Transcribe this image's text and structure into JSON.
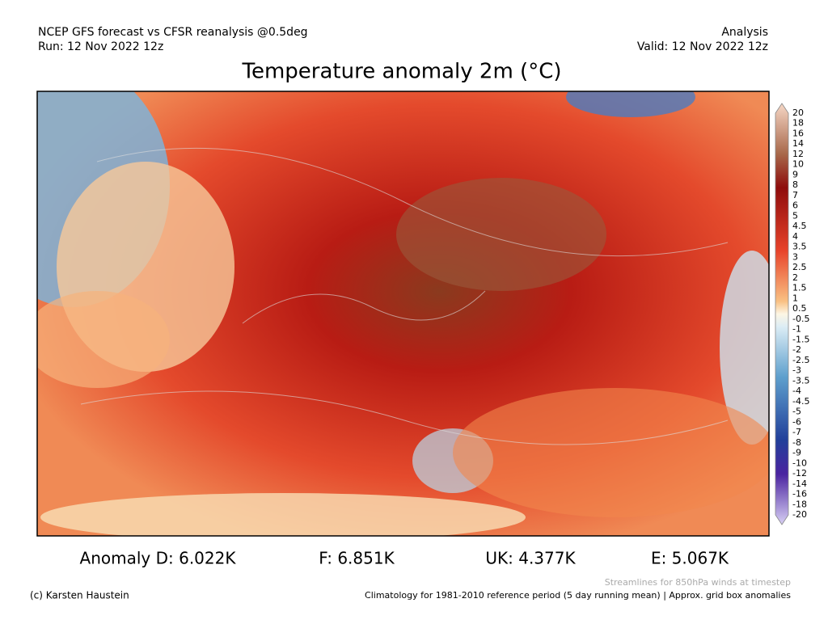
{
  "header": {
    "left_line1": "NCEP GFS forecast vs CFSR reanalysis @0.5deg",
    "left_line2": "Run: 12 Nov 2022 12z",
    "right_line1": "Analysis",
    "right_line2": "Valid: 12 Nov 2022 12z"
  },
  "title": "Temperature anomaly 2m (°C)",
  "colorbar": {
    "labels": [
      "20",
      "18",
      "16",
      "14",
      "12",
      "10",
      "9",
      "8",
      "7",
      "6",
      "5",
      "4.5",
      "4",
      "3.5",
      "3",
      "2.5",
      "2",
      "1.5",
      "1",
      "0.5",
      "-0.5",
      "-1",
      "-1.5",
      "-2",
      "-2.5",
      "-3",
      "-3.5",
      "-4",
      "-4.5",
      "-5",
      "-6",
      "-7",
      "-8",
      "-9",
      "-10",
      "-12",
      "-14",
      "-16",
      "-18",
      "-20"
    ]
  },
  "anomalies": [
    "Anomaly D: 6.022K",
    "F: 6.851K",
    "UK: 4.377K",
    "E: 5.067K"
  ],
  "footer": {
    "credit": "(c) Karsten Haustein",
    "streamlines_note": "Streamlines for 850hPa winds at timestep",
    "climatology_note": "Climatology for 1981-2010 reference period (5 day running mean) | Approx. grid box anomalies"
  }
}
